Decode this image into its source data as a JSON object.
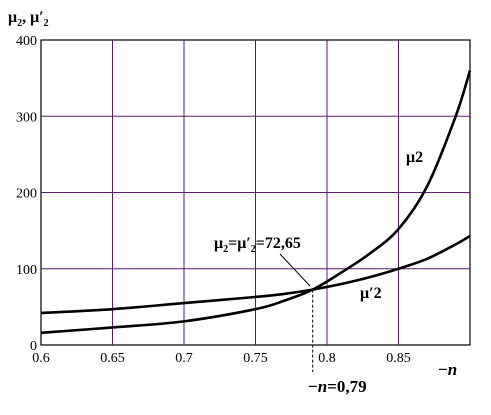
{
  "chart_data": {
    "type": "line",
    "ylabel": {
      "sym": "μ",
      "sub": "2",
      "sep": ", ",
      "sym2": "μ′",
      "sub2": "2"
    },
    "xlabel": "n",
    "xlabel_prefix": "−",
    "xlim": [
      0.6,
      0.9
    ],
    "ylim": [
      0,
      400
    ],
    "x_ticks": [
      0.6,
      0.65,
      0.7,
      0.75,
      0.8,
      0.85
    ],
    "x_tick_labels": [
      "0.6",
      "0.65",
      "0.7",
      "0.75",
      "0.8",
      "0.85"
    ],
    "y_ticks": [
      0,
      100,
      200,
      300,
      400
    ],
    "y_tick_labels": [
      "0",
      "100",
      "200",
      "300",
      "400"
    ],
    "grid": true,
    "grid_color": "#5a1a6e",
    "series": [
      {
        "name": "μ2",
        "x": [
          0.6,
          0.65,
          0.7,
          0.75,
          0.77,
          0.79,
          0.81,
          0.83,
          0.85,
          0.87,
          0.89,
          0.9
        ],
        "y": [
          16,
          23,
          31,
          47,
          58,
          72.65,
          95,
          120,
          152,
          208,
          300,
          360
        ]
      },
      {
        "name": "μ′2",
        "x": [
          0.6,
          0.65,
          0.7,
          0.75,
          0.77,
          0.79,
          0.81,
          0.83,
          0.85,
          0.87,
          0.89,
          0.9
        ],
        "y": [
          42,
          47,
          55,
          63,
          67,
          72.65,
          80,
          89,
          100,
          113,
          132,
          143
        ]
      }
    ],
    "annotations": {
      "intersection": {
        "sym": "μ",
        "sub": "2",
        "eq": "=",
        "sym2": "μ′",
        "sub2": "2",
        "value": "=72,65"
      },
      "n_marker": {
        "prefix": "−",
        "var": "n",
        "value": "=0,79",
        "x": 0.79,
        "y": 72.65
      }
    }
  }
}
